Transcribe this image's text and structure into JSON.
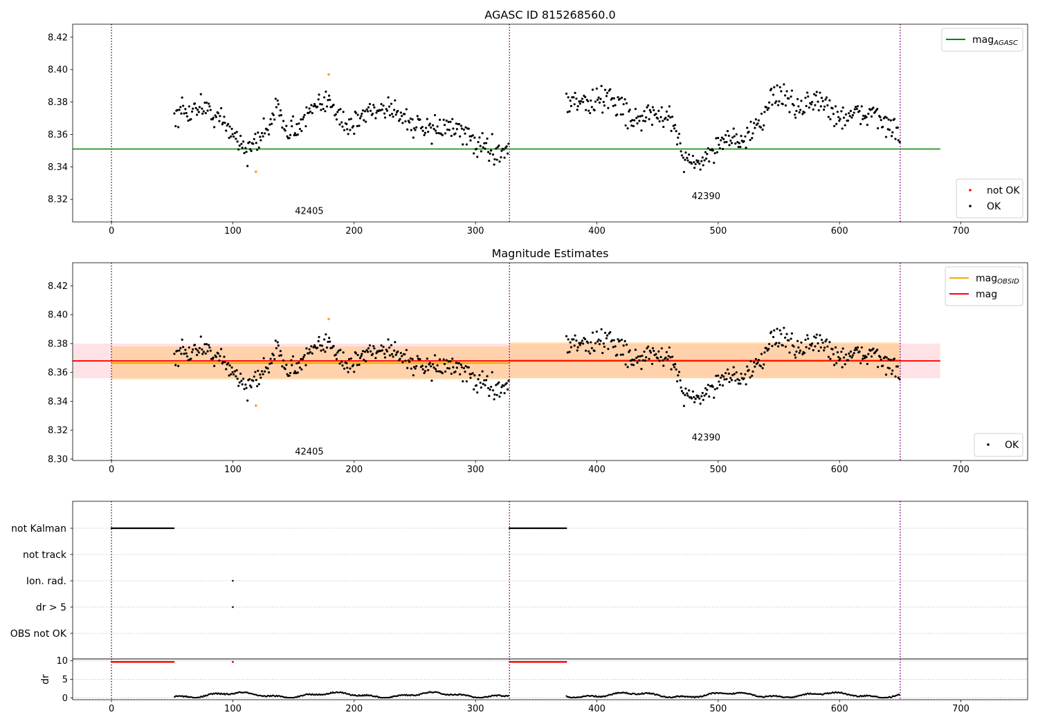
{
  "chart_data": [
    {
      "type": "scatter",
      "title": "AGASC ID 815268560.0",
      "xlim": [
        -32,
        755
      ],
      "ylim": [
        8.306,
        8.428
      ],
      "xticks": [
        0,
        100,
        200,
        300,
        400,
        500,
        600,
        700
      ],
      "yticks": [
        8.32,
        8.34,
        8.36,
        8.38,
        8.4,
        8.42
      ],
      "vlines": [
        0,
        328,
        650
      ],
      "hlines": [
        {
          "name": "mag_AGASC",
          "y": 8.351,
          "x0": -32,
          "x1": 683,
          "color": "#008000"
        }
      ],
      "obsid_labels": [
        {
          "text": "42405",
          "x": 163,
          "y": 8.311
        },
        {
          "text": "42390",
          "x": 490,
          "y": 8.32
        }
      ],
      "legend_top": {
        "position": "top-right",
        "entries": [
          {
            "label": "mag",
            "sub": "AGASC",
            "color": "#008000",
            "kind": "line"
          }
        ]
      },
      "legend_bottom": {
        "position": "bottom-right",
        "entries": [
          {
            "label": "not OK",
            "color": "#ff0000",
            "kind": "dot"
          },
          {
            "label": "OK",
            "color": "#000000",
            "kind": "dot"
          }
        ]
      },
      "series": [
        {
          "name": "OK",
          "segments": [
            {
              "x0": 52,
              "x1": 328,
              "step": 0.8,
              "anchors": [
                [
                  52,
                  8.37
                ],
                [
                  75,
                  8.378
                ],
                [
                  100,
                  8.362
                ],
                [
                  112,
                  8.349
                ],
                [
                  122,
                  8.357
                ],
                [
                  135,
                  8.375
                ],
                [
                  150,
                  8.362
                ],
                [
                  165,
                  8.374
                ],
                [
                  182,
                  8.381
                ],
                [
                  195,
                  8.363
                ],
                [
                  210,
                  8.374
                ],
                [
                  230,
                  8.378
                ],
                [
                  250,
                  8.365
                ],
                [
                  265,
                  8.362
                ],
                [
                  278,
                  8.366
                ],
                [
                  290,
                  8.36
                ],
                [
                  300,
                  8.355
                ],
                [
                  315,
                  8.35
                ],
                [
                  328,
                  8.351
                ]
              ],
              "amp": 0.0055
            },
            {
              "x0": 375,
              "x1": 650,
              "step": 0.8,
              "anchors": [
                [
                  375,
                  8.381
                ],
                [
                  395,
                  8.379
                ],
                [
                  410,
                  8.384
                ],
                [
                  430,
                  8.37
                ],
                [
                  450,
                  8.372
                ],
                [
                  465,
                  8.365
                ],
                [
                  472,
                  8.345
                ],
                [
                  485,
                  8.342
                ],
                [
                  505,
                  8.358
                ],
                [
                  520,
                  8.357
                ],
                [
                  535,
                  8.365
                ],
                [
                  545,
                  8.387
                ],
                [
                  565,
                  8.376
                ],
                [
                  580,
                  8.382
                ],
                [
                  600,
                  8.371
                ],
                [
                  612,
                  8.37
                ],
                [
                  630,
                  8.375
                ],
                [
                  640,
                  8.363
                ],
                [
                  650,
                  8.358
                ]
              ],
              "amp": 0.0055
            }
          ],
          "color": "#000000"
        },
        {
          "name": "orange",
          "points": [
            [
              119,
              8.337
            ],
            [
              179,
              8.397
            ]
          ],
          "color": "#ffa500"
        }
      ]
    },
    {
      "type": "scatter",
      "title": "Magnitude Estimates",
      "xlim": [
        -32,
        755
      ],
      "ylim": [
        8.299,
        8.436
      ],
      "xticks": [
        0,
        100,
        200,
        300,
        400,
        500,
        600,
        700
      ],
      "yticks": [
        8.3,
        8.32,
        8.34,
        8.36,
        8.38,
        8.4,
        8.42
      ],
      "vlines": [
        0,
        328,
        650
      ],
      "bands": [
        {
          "x0": -32,
          "x1": 683,
          "y0": 8.356,
          "y1": 8.38,
          "color": "#ffb6c1",
          "opacity": 0.4
        },
        {
          "x0": 0,
          "x1": 328,
          "y0": 8.355,
          "y1": 8.378,
          "color": "#ffa500",
          "opacity": 0.25
        },
        {
          "x0": 328,
          "x1": 650,
          "y0": 8.356,
          "y1": 8.381,
          "color": "#ffa500",
          "opacity": 0.25
        }
      ],
      "hlines": [
        {
          "name": "mag_OBSID 42405",
          "y": 8.3665,
          "x0": 0,
          "x1": 328,
          "color": "#ffa500",
          "width": 2.2
        },
        {
          "name": "mag_OBSID 42390",
          "y": 8.3685,
          "x0": 328,
          "x1": 650,
          "color": "#ffa500",
          "width": 2.2
        },
        {
          "name": "mag",
          "y": 8.368,
          "x0": -32,
          "x1": 683,
          "color": "#ff0000",
          "width": 1.8
        }
      ],
      "obsid_labels": [
        {
          "text": "42405",
          "x": 163,
          "y": 8.303
        },
        {
          "text": "42390",
          "x": 490,
          "y": 8.313
        }
      ],
      "legend_top": {
        "position": "top-right",
        "entries": [
          {
            "label": "mag",
            "sub": "OBSID",
            "color": "#ffa500",
            "kind": "line"
          },
          {
            "label": "mag",
            "sub": "",
            "color": "#ff0000",
            "kind": "line"
          }
        ]
      },
      "legend_bottom": {
        "position": "bottom-right",
        "entries": [
          {
            "label": "OK",
            "color": "#000000",
            "kind": "dot"
          }
        ]
      },
      "series_ref": "same as chart 0"
    },
    {
      "type": "scatter",
      "title": "",
      "xlim": [
        -32,
        755
      ],
      "categories": [
        "not Kalman",
        "not track",
        "Ion. rad.",
        "dr > 5",
        "OBS not OK"
      ],
      "flags": [
        {
          "category": "not Kalman",
          "ranges": [
            [
              0,
              52
            ],
            [
              328,
              375
            ]
          ]
        },
        {
          "category": "Ion. rad.",
          "points": [
            100
          ]
        },
        {
          "category": "dr > 5",
          "points": [
            100
          ]
        }
      ]
    },
    {
      "type": "scatter",
      "title": "",
      "ylabel": "dr",
      "xlim": [
        -32,
        755
      ],
      "ylim": [
        -0.5,
        10.5
      ],
      "xticks": [
        0,
        100,
        200,
        300,
        400,
        500,
        600,
        700
      ],
      "yticks": [
        0,
        5,
        10
      ],
      "vlines": [
        0,
        328,
        650
      ],
      "series": [
        {
          "name": "dr high",
          "ranges": [
            [
              0,
              52
            ],
            [
              328,
              375
            ]
          ],
          "points": [
            100
          ],
          "y": 9.7,
          "color": "#ff0000"
        },
        {
          "name": "dr",
          "segments": [
            [
              52,
              328
            ],
            [
              375,
              650
            ]
          ],
          "color": "#000000"
        }
      ]
    }
  ],
  "labels": {
    "title1": "AGASC ID 815268560.0",
    "title2": "Magnitude Estimates",
    "ylabel4": "dr"
  }
}
